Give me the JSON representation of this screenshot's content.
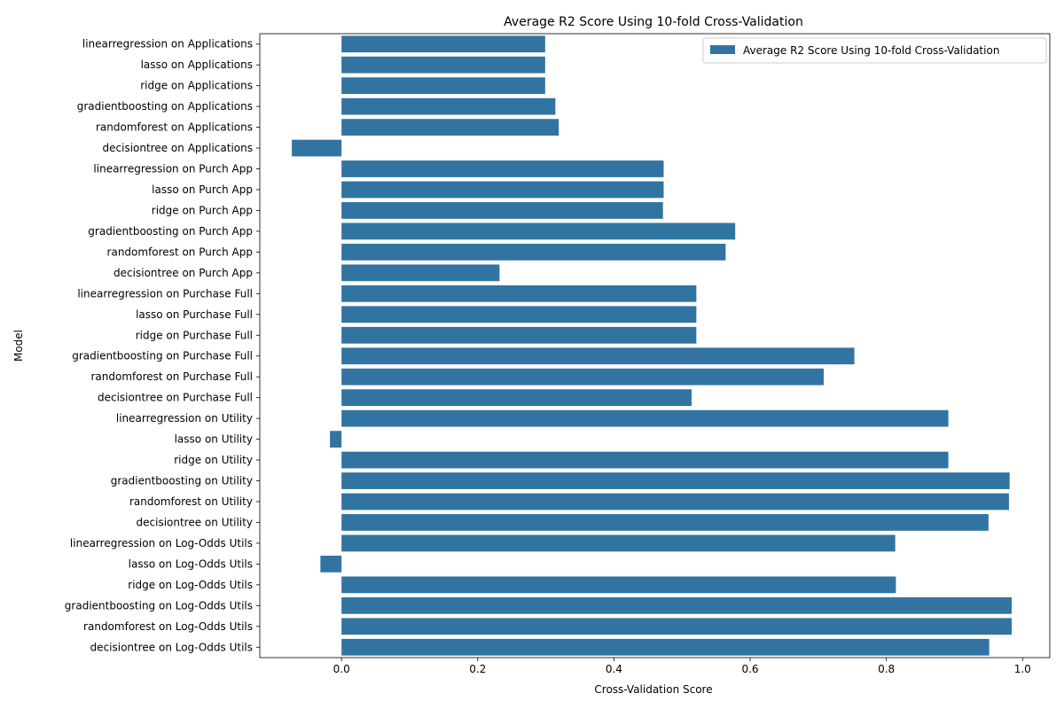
{
  "chart_data": {
    "type": "bar",
    "orientation": "horizontal",
    "title": "Average R2 Score Using 10-fold Cross-Validation",
    "xlabel": "Cross-Validation Score",
    "ylabel": "Model",
    "xlim": [
      -0.12,
      1.04
    ],
    "xticks": [
      0.0,
      0.2,
      0.4,
      0.6,
      0.8,
      1.0
    ],
    "xtick_labels": [
      "0.0",
      "0.2",
      "0.4",
      "0.6",
      "0.8",
      "1.0"
    ],
    "grid": false,
    "legend_position": "top-right",
    "bar_color": "#3274a1",
    "categories": [
      "linearregression on Applications",
      "lasso on Applications",
      "ridge on Applications",
      "gradientboosting on Applications",
      "randomforest on Applications",
      "decisiontree on Applications",
      "linearregression on Purch App",
      "lasso on Purch App",
      "ridge on Purch App",
      "gradientboosting on Purch App",
      "randomforest on Purch App",
      "decisiontree on Purch App",
      "linearregression on Purchase Full",
      "lasso on Purchase Full",
      "ridge on Purchase Full",
      "gradientboosting on Purchase Full",
      "randomforest on Purchase Full",
      "decisiontree on Purchase Full",
      "linearregression on Utility",
      "lasso on Utility",
      "ridge on Utility",
      "gradientboosting on Utility",
      "randomforest on Utility",
      "decisiontree on Utility",
      "linearregression on Log-Odds Utils",
      "lasso on Log-Odds Utils",
      "ridge on Log-Odds Utils",
      "gradientboosting on Log-Odds Utils",
      "randomforest on Log-Odds Utils",
      "decisiontree on Log-Odds Utils"
    ],
    "series": [
      {
        "name": "Average R2 Score Using 10-fold Cross-Validation",
        "values": [
          0.299,
          0.299,
          0.299,
          0.314,
          0.319,
          -0.073,
          0.473,
          0.473,
          0.472,
          0.578,
          0.564,
          0.232,
          0.521,
          0.521,
          0.521,
          0.753,
          0.708,
          0.514,
          0.891,
          -0.017,
          0.891,
          0.981,
          0.98,
          0.95,
          0.813,
          -0.031,
          0.814,
          0.984,
          0.984,
          0.951
        ]
      }
    ]
  }
}
